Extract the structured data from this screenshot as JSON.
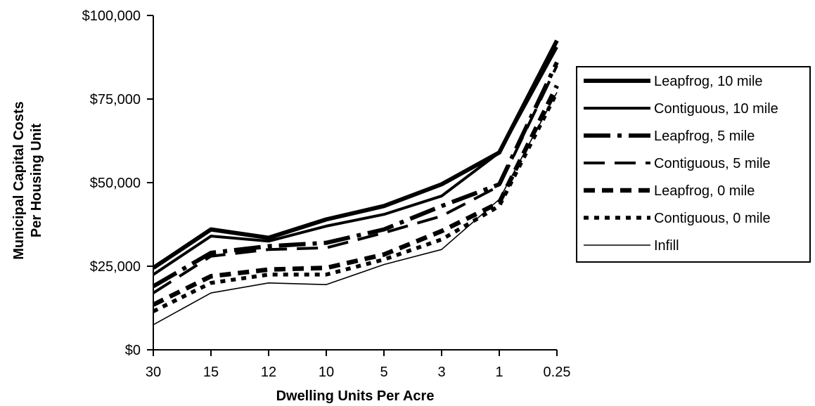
{
  "chart_data": {
    "type": "line",
    "title": "",
    "xlabel": "Dwelling Units Per Acre",
    "ylabel_lines": [
      "Municipal Capital Costs",
      "Per Housing Unit"
    ],
    "categories": [
      "30",
      "15",
      "12",
      "10",
      "5",
      "3",
      "1",
      "0.25"
    ],
    "ylim": [
      0,
      100000
    ],
    "yticks": [
      0,
      25000,
      50000,
      75000,
      100000
    ],
    "ytick_labels": [
      "$0",
      "$25,000",
      "$50,000",
      "$75,000",
      "$100,000"
    ],
    "grid": false,
    "legend_position": "right",
    "series": [
      {
        "name": "Leapfrog, 10 mile",
        "style": "solid-heavy",
        "values": [
          24500,
          36000,
          33500,
          39000,
          43000,
          49500,
          59000,
          92500
        ]
      },
      {
        "name": "Contiguous, 10 mile",
        "style": "solid",
        "values": [
          22500,
          34000,
          32500,
          37000,
          40500,
          46000,
          59000,
          90500
        ]
      },
      {
        "name": "Leapfrog, 5 mile",
        "style": "long-dash-heavy",
        "values": [
          19000,
          29000,
          31000,
          32000,
          36000,
          43000,
          49500,
          86000
        ]
      },
      {
        "name": "Contiguous, 5 mile",
        "style": "long-dash",
        "values": [
          17000,
          28000,
          30000,
          30500,
          35000,
          40000,
          49000,
          85000
        ]
      },
      {
        "name": "Leapfrog, 0 mile",
        "style": "dash-heavy",
        "values": [
          13500,
          22000,
          24000,
          24500,
          28500,
          35500,
          44000,
          79000
        ]
      },
      {
        "name": "Contiguous, 0 mile",
        "style": "dot-heavy",
        "values": [
          11500,
          20000,
          22500,
          22500,
          27000,
          33000,
          43000,
          77000
        ]
      },
      {
        "name": "Infill",
        "style": "thin",
        "values": [
          7500,
          17000,
          20000,
          19500,
          25500,
          30000,
          45000,
          77000
        ]
      }
    ]
  }
}
